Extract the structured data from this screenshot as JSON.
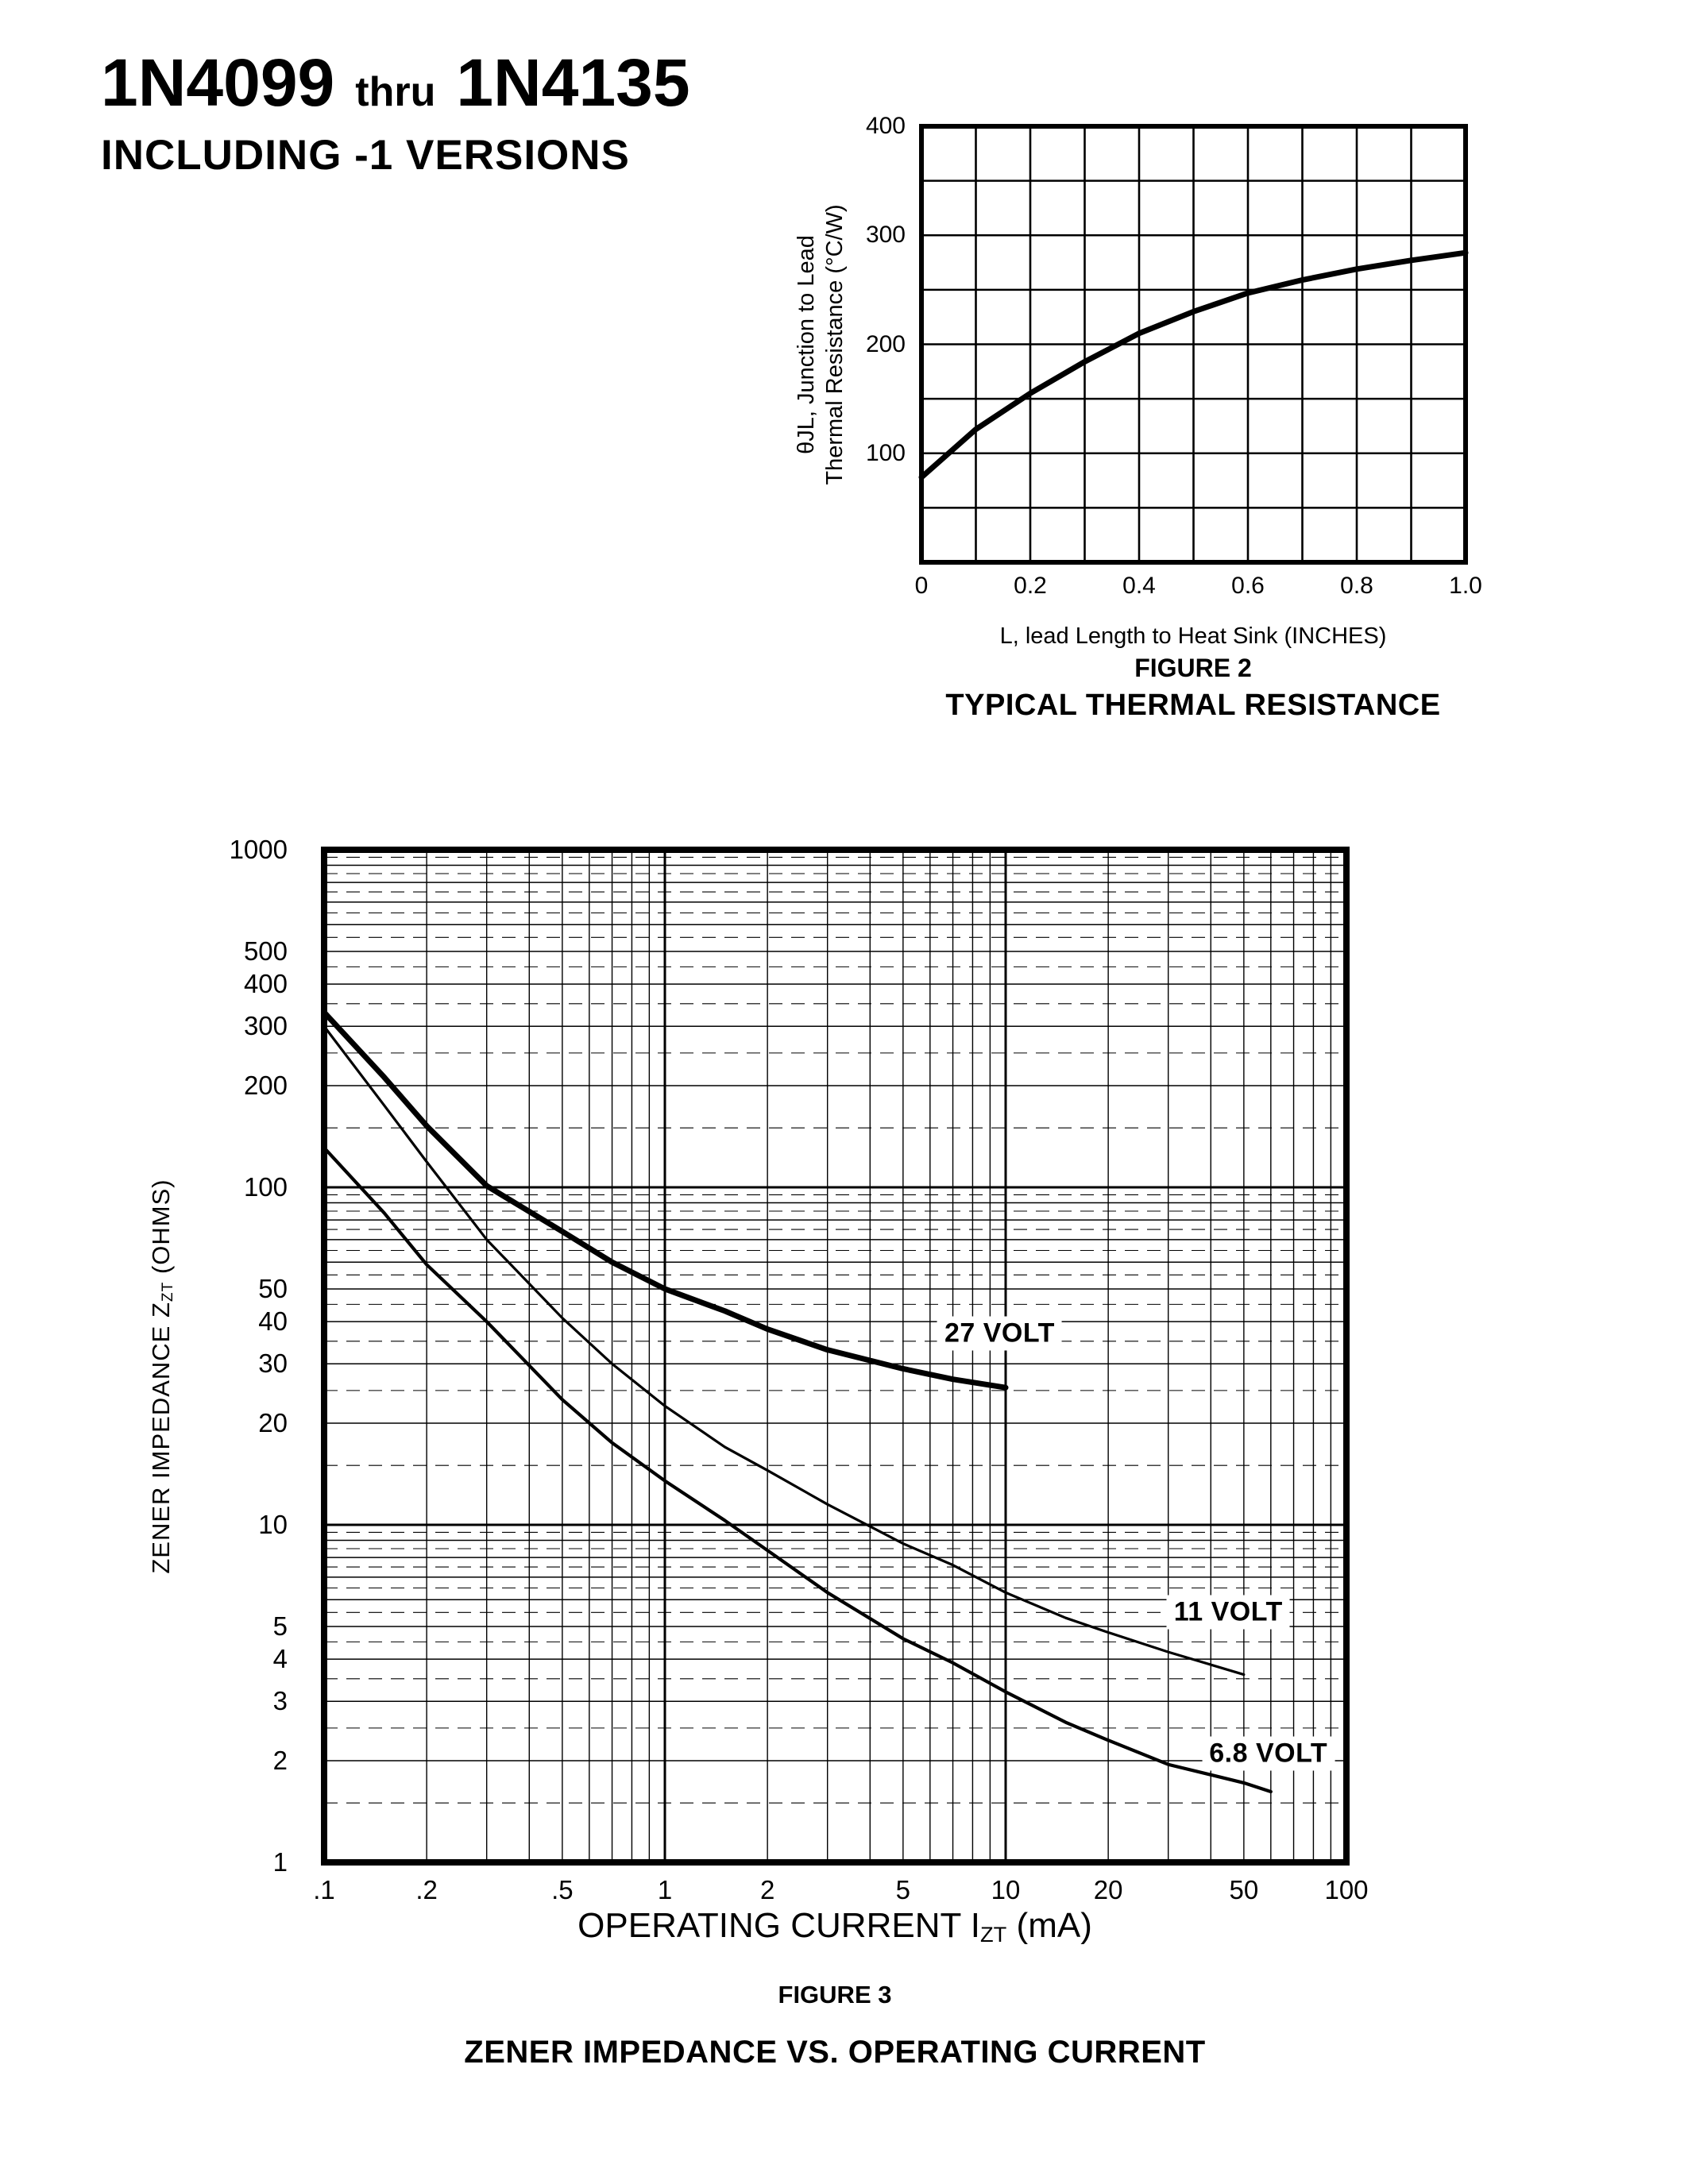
{
  "header": {
    "title_start": "1N4099",
    "title_thru": "thru",
    "title_end": "1N4135",
    "subtitle": "INCLUDING -1 VERSIONS"
  },
  "figure2": {
    "y_axis_label_line1": "θJL, Junction to Lead",
    "y_axis_label_line2": "Thermal Resistance (°C/W)",
    "x_axis_label": "L, lead Length to Heat Sink (INCHES)",
    "figure_label": "FIGURE 2",
    "figure_title": "TYPICAL THERMAL RESISTANCE"
  },
  "figure3": {
    "y_axis_label_pre": "ZENER IMPEDANCE Z",
    "y_axis_label_sub": "ZT",
    "y_axis_label_post": " (OHMS)",
    "x_axis_label_pre": "OPERATING CURRENT I",
    "x_axis_label_sub": "ZT",
    "x_axis_label_post": " (mA)",
    "figure_label": "FIGURE 3",
    "figure_title": "ZENER IMPEDANCE VS. OPERATING CURRENT"
  },
  "chart_data": [
    {
      "id": "figure2",
      "type": "line",
      "title": "TYPICAL THERMAL RESISTANCE",
      "figure_label": "FIGURE 2",
      "xlabel": "L, lead Length to Heat Sink (INCHES)",
      "ylabel": "θJL, Junction to Lead Thermal Resistance (°C/W)",
      "xlim": [
        0,
        1.0
      ],
      "ylim": [
        0,
        400
      ],
      "x_grid_step": 0.1,
      "y_grid_step": 50,
      "x_ticks": [
        0,
        0.2,
        0.4,
        0.6,
        0.8,
        1.0
      ],
      "x_tick_labels": [
        "0",
        "0.2",
        "0.4",
        "0.6",
        "0.8",
        "1.0"
      ],
      "y_ticks": [
        100,
        200,
        300,
        400
      ],
      "y_tick_labels": [
        "100",
        "200",
        "300",
        "400"
      ],
      "grid": true,
      "legend": false,
      "series": [
        {
          "name": "junction to lead thermal resistance",
          "x": [
            0,
            0.1,
            0.2,
            0.3,
            0.4,
            0.5,
            0.6,
            0.7,
            0.8,
            0.9,
            1.0
          ],
          "y": [
            78,
            122,
            155,
            184,
            210,
            230,
            247,
            259,
            269,
            277,
            284
          ]
        }
      ]
    },
    {
      "id": "figure3",
      "type": "line",
      "title": "ZENER IMPEDANCE VS. OPERATING CURRENT",
      "figure_label": "FIGURE 3",
      "xlabel": "OPERATING CURRENT IZT (mA)",
      "ylabel": "ZENER IMPEDANCE ZZT (OHMS)",
      "x_scale": "log",
      "y_scale": "log",
      "xlim": [
        0.1,
        100
      ],
      "ylim": [
        1,
        1000
      ],
      "x_ticks": [
        0.1,
        0.2,
        0.5,
        1,
        2,
        5,
        10,
        20,
        50,
        100
      ],
      "x_tick_labels": [
        ".1",
        ".2",
        ".5",
        "1",
        "2",
        "5",
        "10",
        "20",
        "50",
        "100"
      ],
      "y_ticks": [
        1000,
        500,
        400,
        300,
        200,
        100,
        50,
        40,
        30,
        20,
        10,
        5,
        4,
        3,
        2,
        1
      ],
      "y_tick_labels": [
        "1000",
        "500",
        "400",
        "300",
        "200",
        "100",
        "50",
        "40",
        "30",
        "20",
        "10",
        "5",
        "4",
        "3",
        "2",
        "1"
      ],
      "grid": true,
      "legend": false,
      "series": [
        {
          "name": "27 VOLT",
          "label_xy": [
            9.6,
            37
          ],
          "points": [
            [
              0.1,
              330
            ],
            [
              0.15,
              212
            ],
            [
              0.2,
              152
            ],
            [
              0.3,
              101
            ],
            [
              0.5,
              74
            ],
            [
              0.7,
              60
            ],
            [
              1,
              50
            ],
            [
              1.5,
              43
            ],
            [
              2,
              38
            ],
            [
              3,
              33
            ],
            [
              5,
              29
            ],
            [
              7,
              27
            ],
            [
              10,
              25.5
            ]
          ]
        },
        {
          "name": "11 VOLT",
          "label_xy": [
            45,
            5.5
          ],
          "points": [
            [
              0.1,
              300
            ],
            [
              0.15,
              175
            ],
            [
              0.2,
              119
            ],
            [
              0.3,
              70
            ],
            [
              0.5,
              41
            ],
            [
              0.7,
              30
            ],
            [
              1,
              22.5
            ],
            [
              1.5,
              17
            ],
            [
              2,
              14.5
            ],
            [
              3,
              11.5
            ],
            [
              5,
              8.8
            ],
            [
              7,
              7.6
            ],
            [
              10,
              6.3
            ],
            [
              15,
              5.3
            ],
            [
              20,
              4.8
            ],
            [
              30,
              4.2
            ],
            [
              50,
              3.6
            ]
          ]
        },
        {
          "name": "6.8 VOLT",
          "label_xy": [
            59,
            2.1
          ],
          "points": [
            [
              0.1,
              131
            ],
            [
              0.15,
              84
            ],
            [
              0.2,
              59
            ],
            [
              0.3,
              40
            ],
            [
              0.5,
              23.5
            ],
            [
              0.7,
              17.5
            ],
            [
              1,
              13.5
            ],
            [
              1.5,
              10.3
            ],
            [
              2,
              8.4
            ],
            [
              3,
              6.3
            ],
            [
              5,
              4.6
            ],
            [
              7,
              3.9
            ],
            [
              10,
              3.2
            ],
            [
              15,
              2.6
            ],
            [
              20,
              2.3
            ],
            [
              30,
              1.95
            ],
            [
              50,
              1.72
            ],
            [
              60,
              1.62
            ]
          ]
        }
      ]
    }
  ]
}
